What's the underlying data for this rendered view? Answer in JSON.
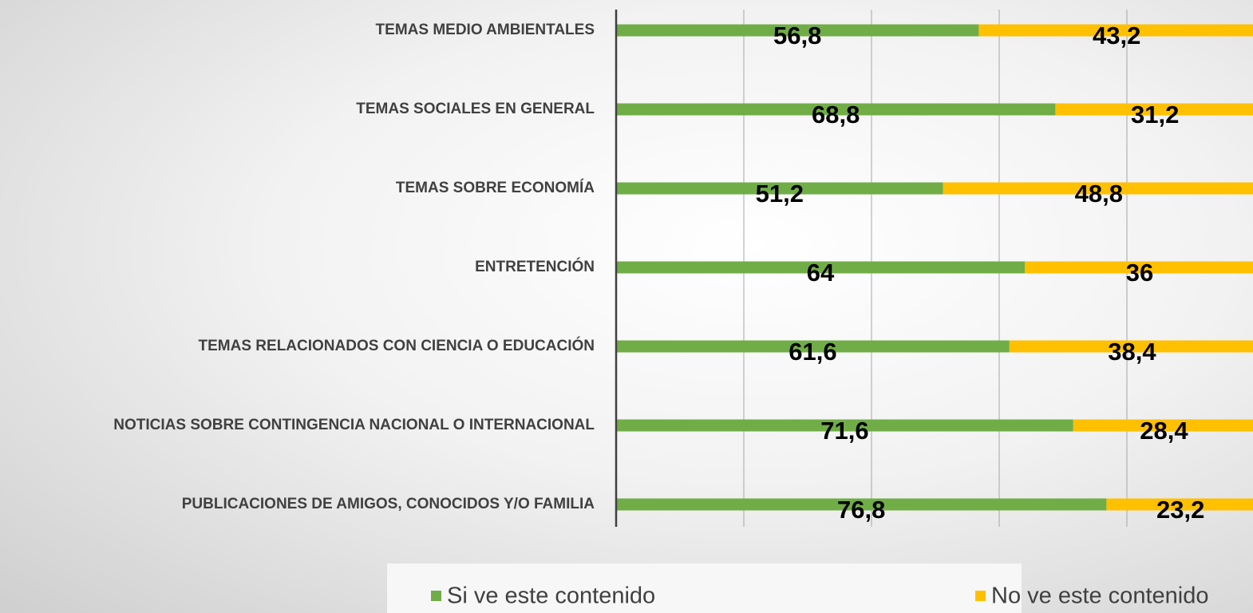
{
  "chart_data": {
    "type": "stacked_barh",
    "categories": [
      "TEMAS MEDIO AMBIENTALES",
      "TEMAS SOCIALES EN GENERAL",
      "TEMAS SOBRE ECONOMÍA",
      "ENTRETENCIÓN",
      "TEMAS RELACIONADOS CON CIENCIA O EDUCACIÓN",
      "NOTICIAS SOBRE CONTINGENCIA NACIONAL O INTERNACIONAL",
      "PUBLICACIONES DE AMIGOS, CONOCIDOS Y/O FAMILIA"
    ],
    "series": [
      {
        "name": "Si ve este contenido",
        "color": "#70ad47",
        "values": [
          56.8,
          68.8,
          51.2,
          64,
          61.6,
          71.6,
          76.8
        ],
        "value_labels": [
          "56,8",
          "68,8",
          "51,2",
          "64",
          "61,6",
          "71,6",
          "76,8"
        ]
      },
      {
        "name": "No ve este contenido",
        "color": "#ffc000",
        "values": [
          43.2,
          31.2,
          48.8,
          36,
          38.4,
          28.4,
          23.2
        ],
        "value_labels": [
          "43,2",
          "31,2",
          "48,8",
          "36",
          "38,4",
          "28,4",
          "23,2"
        ]
      }
    ],
    "xlim": [
      0,
      100
    ],
    "xticks": [
      0,
      20,
      40,
      60,
      80,
      100
    ],
    "grid": true,
    "legend": "bottom"
  }
}
